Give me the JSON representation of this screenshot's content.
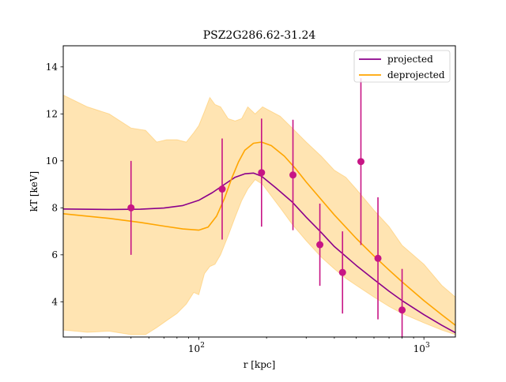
{
  "chart_data": {
    "type": "line",
    "title": "PSZ2G286.62-31.24",
    "xlabel": "r [kpc]",
    "ylabel": "kT [keV]",
    "xscale": "log",
    "xlim": [
      25,
      1380
    ],
    "ylim": [
      2.5,
      14.9
    ],
    "x_ticks": [
      {
        "value": 100,
        "base": "10",
        "exp": "2"
      },
      {
        "value": 1000,
        "base": "10",
        "exp": "3"
      }
    ],
    "y_ticks": [
      4,
      6,
      8,
      10,
      12,
      14
    ],
    "grid": false,
    "legend_position": "upper right",
    "series": [
      {
        "name": "projected",
        "style": "line",
        "color": "#8b008b",
        "x": [
          25,
          40,
          55,
          70,
          85,
          100,
          115,
          130,
          145,
          160,
          175,
          190,
          220,
          260,
          300,
          350,
          400,
          500,
          600,
          700,
          800,
          1000,
          1200,
          1380
        ],
        "y": [
          7.95,
          7.93,
          7.94,
          7.99,
          8.1,
          8.32,
          8.65,
          9.0,
          9.3,
          9.45,
          9.48,
          9.35,
          8.85,
          8.25,
          7.6,
          6.95,
          6.35,
          5.55,
          4.95,
          4.45,
          4.05,
          3.45,
          3.0,
          2.68
        ]
      },
      {
        "name": "deprojected",
        "style": "line",
        "color": "#ffa500",
        "x": [
          25,
          40,
          55,
          70,
          85,
          100,
          110,
          120,
          130,
          140,
          150,
          160,
          175,
          190,
          210,
          240,
          270,
          300,
          350,
          400,
          500,
          600,
          700,
          800,
          1000,
          1200,
          1380
        ],
        "y": [
          7.75,
          7.55,
          7.38,
          7.22,
          7.1,
          7.05,
          7.18,
          7.65,
          8.4,
          9.25,
          9.95,
          10.45,
          10.75,
          10.8,
          10.65,
          10.2,
          9.65,
          9.1,
          8.35,
          7.7,
          6.7,
          5.95,
          5.35,
          4.85,
          4.05,
          3.45,
          3.0
        ]
      },
      {
        "name": "deprojected-band",
        "style": "band",
        "color": "#ffa500",
        "x": [
          25,
          32,
          40,
          50,
          58,
          65,
          72,
          80,
          88,
          95,
          100,
          106,
          112,
          118,
          125,
          135,
          145,
          155,
          165,
          178,
          192,
          210,
          230,
          260,
          300,
          350,
          400,
          450,
          500,
          600,
          700,
          800,
          1000,
          1200,
          1380
        ],
        "upper": [
          12.8,
          12.3,
          12.0,
          11.4,
          11.3,
          10.8,
          10.9,
          10.9,
          10.8,
          11.2,
          11.5,
          12.1,
          12.7,
          12.4,
          12.3,
          11.8,
          11.7,
          11.8,
          12.3,
          12.0,
          12.3,
          12.1,
          11.9,
          11.4,
          10.8,
          10.2,
          9.6,
          9.3,
          8.8,
          7.9,
          7.2,
          6.4,
          5.6,
          4.7,
          4.2
        ],
        "lower": [
          2.8,
          2.7,
          2.75,
          2.6,
          2.6,
          2.9,
          3.2,
          3.5,
          3.9,
          4.4,
          4.3,
          5.2,
          5.5,
          5.6,
          6.0,
          6.8,
          7.6,
          8.3,
          8.8,
          9.2,
          9.0,
          8.5,
          8.0,
          7.3,
          6.6,
          5.9,
          5.4,
          5.0,
          4.7,
          4.2,
          3.8,
          3.5,
          3.1,
          2.8,
          2.6
        ]
      },
      {
        "name": "data",
        "style": "errorbar",
        "color": "#c71585",
        "x": [
          50,
          127,
          190,
          262,
          345,
          435,
          525,
          625,
          800
        ],
        "y": [
          8.0,
          8.8,
          9.5,
          9.4,
          6.43,
          5.25,
          9.97,
          5.85,
          3.65
        ],
        "yerr": [
          2.0,
          2.15,
          2.3,
          2.35,
          1.75,
          1.75,
          3.55,
          2.6,
          1.75
        ]
      }
    ]
  }
}
